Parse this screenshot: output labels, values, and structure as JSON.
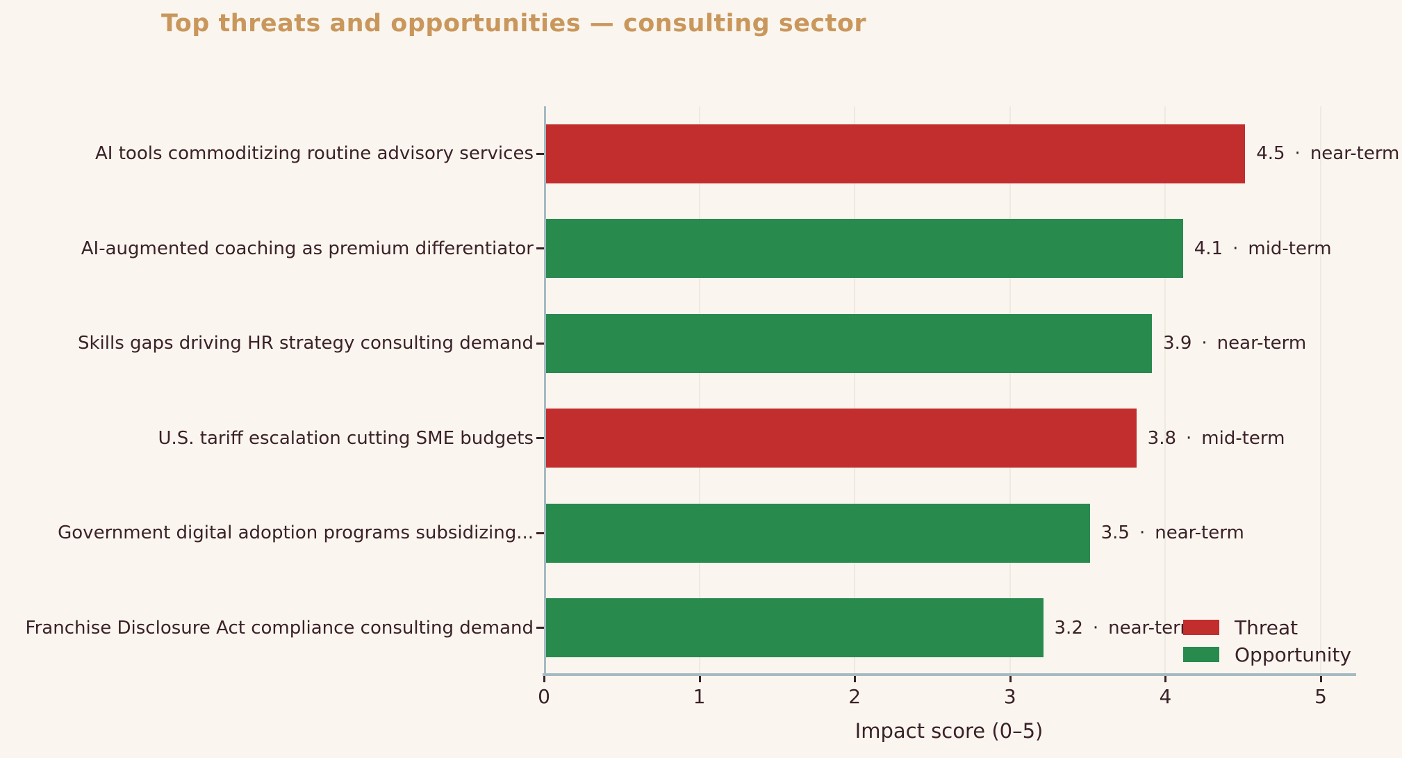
{
  "page": {
    "title": "Top threats and opportunities — consulting sector",
    "xlabel": "Impact score (0–5)"
  },
  "colors": {
    "background": "#faf6ef",
    "title": "#c9975c",
    "threat": "#c22d2d",
    "opportunity": "#298a4e",
    "axis": "#a6bac2",
    "gridline": "#eee9e1",
    "text": "#3b2128"
  },
  "legend": {
    "items": [
      {
        "label": "Threat",
        "series": "threat"
      },
      {
        "label": "Opportunity",
        "series": "opportunity"
      }
    ]
  },
  "chart_data": {
    "type": "bar",
    "orientation": "horizontal",
    "title": "Top threats and opportunities — consulting sector",
    "xlabel": "Impact score (0–5)",
    "xlim": [
      0,
      5.2
    ],
    "xticks": [
      0,
      1,
      2,
      3,
      4,
      5
    ],
    "grid": true,
    "legend_position": "lower right",
    "value_label_separator": "·",
    "bars": [
      {
        "category": "AI tools commoditizing routine advisory services",
        "value": 4.5,
        "timeframe": "near-term",
        "series": "threat",
        "series_label": "Threat"
      },
      {
        "category": "AI-augmented coaching as premium differentiator",
        "value": 4.1,
        "timeframe": "mid-term",
        "series": "opportunity",
        "series_label": "Opportunity"
      },
      {
        "category": "Skills gaps driving HR strategy consulting demand",
        "value": 3.9,
        "timeframe": "near-term",
        "series": "opportunity",
        "series_label": "Opportunity"
      },
      {
        "category": "U.S. tariff escalation cutting SME budgets",
        "value": 3.8,
        "timeframe": "mid-term",
        "series": "threat",
        "series_label": "Threat"
      },
      {
        "category": "Government digital adoption programs subsidizing...",
        "value": 3.5,
        "timeframe": "near-term",
        "series": "opportunity",
        "series_label": "Opportunity"
      },
      {
        "category": "Franchise Disclosure Act compliance consulting demand",
        "value": 3.2,
        "timeframe": "near-term",
        "series": "opportunity",
        "series_label": "Opportunity"
      }
    ]
  }
}
